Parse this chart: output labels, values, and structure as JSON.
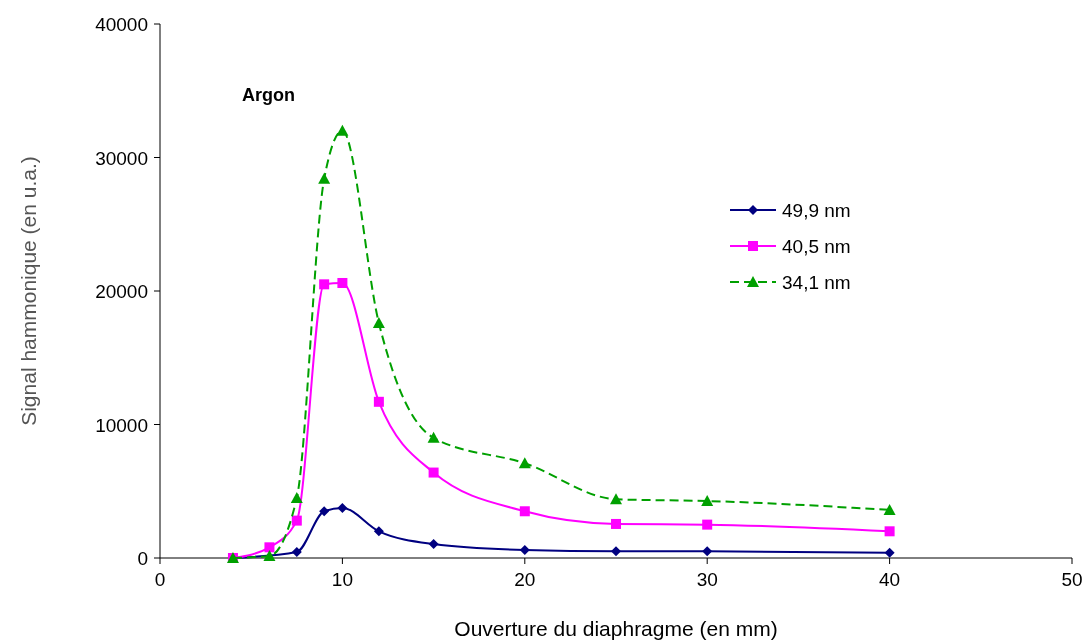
{
  "chart_data": {
    "type": "line",
    "title": "Argon",
    "xlabel": "Ouverture du diaphragme (en mm)",
    "ylabel": "Signal hammonique (en u.a.)",
    "x": [
      4,
      6,
      7.5,
      9,
      10,
      12,
      15,
      20,
      25,
      30,
      40
    ],
    "xlim": [
      0,
      50
    ],
    "xticks": [
      0,
      10,
      20,
      30,
      40,
      50
    ],
    "ylim": [
      0,
      40000
    ],
    "yticks": [
      0,
      10000,
      20000,
      30000,
      40000
    ],
    "grid": false,
    "legend": "right",
    "series": [
      {
        "name": "49,9 nm",
        "color": "#000080",
        "marker": "diamond",
        "line_style": "solid",
        "values": [
          0,
          null,
          450,
          3500,
          3750,
          2000,
          1050,
          600,
          500,
          500,
          400
        ]
      },
      {
        "name": "40,5 nm",
        "color": "#ff00ff",
        "marker": "square",
        "line_style": "solid",
        "values": [
          0,
          800,
          2800,
          20500,
          20600,
          11700,
          6400,
          3500,
          2550,
          2500,
          2000
        ]
      },
      {
        "name": "34,1 nm",
        "color": "#00a000",
        "marker": "triangle",
        "line_style": "dashed",
        "values": [
          0,
          150,
          4500,
          28400,
          32000,
          17600,
          9000,
          7100,
          4400,
          4270,
          3600
        ]
      }
    ]
  }
}
